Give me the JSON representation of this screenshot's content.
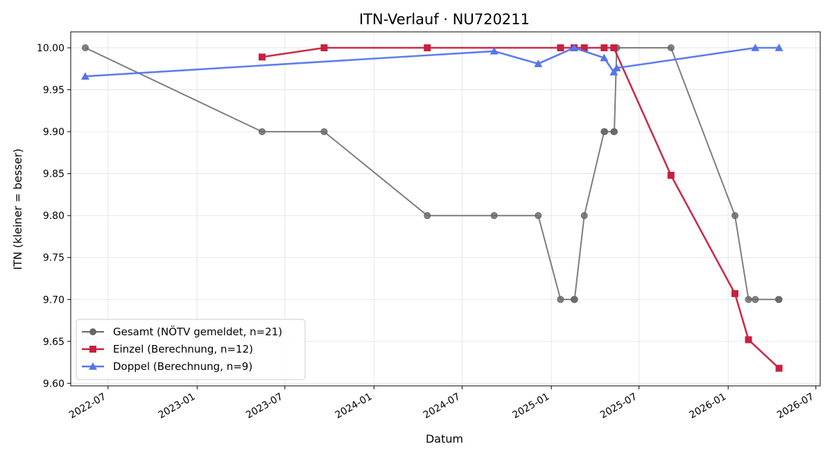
{
  "chart_data": {
    "type": "line",
    "title": "ITN-Verlauf · NU720211",
    "xlabel": "Datum",
    "ylabel": "ITN  (kleiner = besser)",
    "xlim": [
      "2022-04-15",
      "2026-07-10"
    ],
    "ylim": [
      9.597,
      10.019
    ],
    "x_ticks": [
      "2022-07-01",
      "2023-01-01",
      "2023-07-01",
      "2024-01-01",
      "2024-07-01",
      "2025-01-01",
      "2025-07-01",
      "2026-01-01",
      "2026-07-01"
    ],
    "x_tick_labels": [
      "2022-07",
      "2023-01",
      "2023-07",
      "2024-01",
      "2024-07",
      "2025-01",
      "2025-07",
      "2026-01",
      "2026-07"
    ],
    "y_ticks": [
      9.6,
      9.65,
      9.7,
      9.75,
      9.8,
      9.85,
      9.9,
      9.95,
      10.0
    ],
    "y_tick_labels": [
      "9.60",
      "9.65",
      "9.70",
      "9.75",
      "9.80",
      "9.85",
      "9.90",
      "9.95",
      "10.00"
    ],
    "grid": true,
    "legend_position": "lower-left",
    "series": [
      {
        "name": "Gesamt (NÖTV gemeldet, n=21)",
        "color": "#666666",
        "marker": "circle",
        "points": [
          {
            "x": "2022-05-15",
            "y": 10.0
          },
          {
            "x": "2023-05-15",
            "y": 9.9
          },
          {
            "x": "2023-09-20",
            "y": 9.9
          },
          {
            "x": "2024-04-20",
            "y": 9.8
          },
          {
            "x": "2024-09-05",
            "y": 9.8
          },
          {
            "x": "2024-12-05",
            "y": 9.8
          },
          {
            "x": "2025-01-20",
            "y": 9.7
          },
          {
            "x": "2025-02-17",
            "y": 9.7
          },
          {
            "x": "2025-02-18",
            "y": 9.7
          },
          {
            "x": "2025-03-10",
            "y": 9.8
          },
          {
            "x": "2025-04-20",
            "y": 9.9
          },
          {
            "x": "2025-04-21",
            "y": 9.9
          },
          {
            "x": "2025-05-10",
            "y": 9.9
          },
          {
            "x": "2025-05-11",
            "y": 9.9
          },
          {
            "x": "2025-05-16",
            "y": 10.0
          },
          {
            "x": "2025-09-05",
            "y": 10.0
          },
          {
            "x": "2026-01-15",
            "y": 9.8
          },
          {
            "x": "2026-02-12",
            "y": 9.7
          },
          {
            "x": "2026-02-26",
            "y": 9.7
          },
          {
            "x": "2026-04-15",
            "y": 9.7
          },
          {
            "x": "2026-04-16",
            "y": 9.7
          }
        ]
      },
      {
        "name": "Einzel (Berechnung, n=12)",
        "color": "#c8203f",
        "marker": "square",
        "points": [
          {
            "x": "2023-05-15",
            "y": 9.989
          },
          {
            "x": "2023-09-20",
            "y": 10.0
          },
          {
            "x": "2024-04-20",
            "y": 10.0
          },
          {
            "x": "2025-01-20",
            "y": 10.0
          },
          {
            "x": "2025-02-17",
            "y": 10.0
          },
          {
            "x": "2025-03-10",
            "y": 10.0
          },
          {
            "x": "2025-04-20",
            "y": 10.0
          },
          {
            "x": "2025-05-10",
            "y": 10.0
          },
          {
            "x": "2025-09-05",
            "y": 9.848
          },
          {
            "x": "2026-01-15",
            "y": 9.707
          },
          {
            "x": "2026-02-12",
            "y": 9.652
          },
          {
            "x": "2026-04-16",
            "y": 9.618
          }
        ]
      },
      {
        "name": "Doppel (Berechnung, n=9)",
        "color": "#5575ec",
        "marker": "triangle",
        "points": [
          {
            "x": "2022-05-15",
            "y": 9.966
          },
          {
            "x": "2024-09-05",
            "y": 9.996
          },
          {
            "x": "2024-12-05",
            "y": 9.981
          },
          {
            "x": "2025-02-17",
            "y": 10.0
          },
          {
            "x": "2025-04-20",
            "y": 9.988
          },
          {
            "x": "2025-05-10",
            "y": 9.971
          },
          {
            "x": "2025-05-16",
            "y": 9.976
          },
          {
            "x": "2026-02-26",
            "y": 10.0
          },
          {
            "x": "2026-04-16",
            "y": 10.0
          }
        ]
      }
    ]
  }
}
